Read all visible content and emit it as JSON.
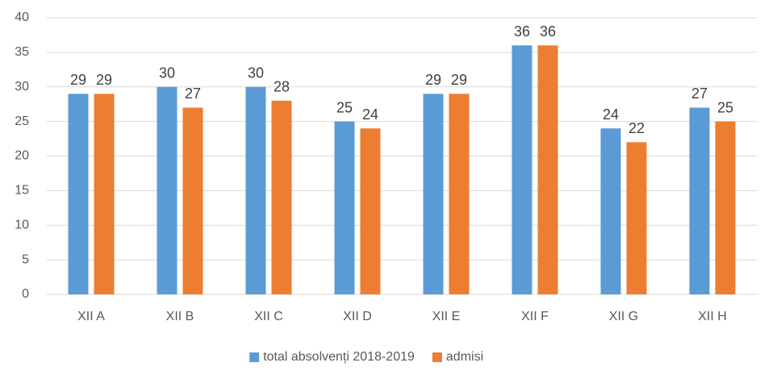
{
  "chart_data": {
    "type": "bar",
    "categories": [
      "XII A",
      "XII B",
      "XII C",
      "XII D",
      "XII E",
      "XII F",
      "XII G",
      "XII H"
    ],
    "series": [
      {
        "name": "total absolvenți 2018-2019",
        "color": "#5b9bd5",
        "values": [
          29,
          30,
          30,
          25,
          29,
          36,
          24,
          27
        ]
      },
      {
        "name": "admisi",
        "color": "#ed7d31",
        "values": [
          29,
          27,
          28,
          24,
          29,
          36,
          22,
          25
        ]
      }
    ],
    "ylim": [
      0,
      40
    ],
    "yticks": [
      0,
      5,
      10,
      15,
      20,
      25,
      30,
      35,
      40
    ],
    "grid": true,
    "legend": "bottom"
  }
}
